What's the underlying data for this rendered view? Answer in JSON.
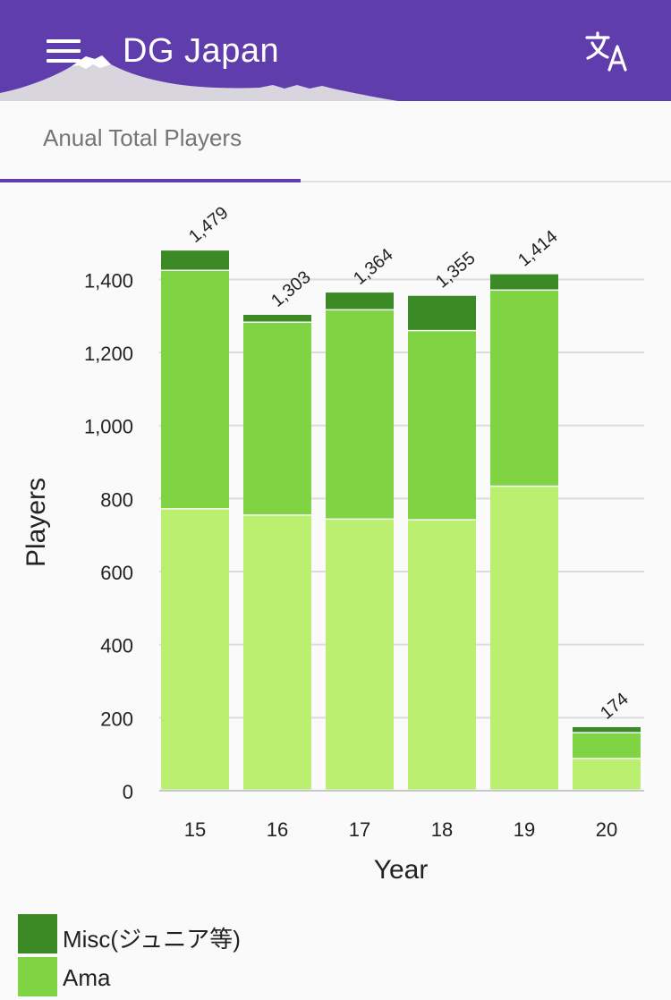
{
  "app": {
    "title": "DG Japan"
  },
  "icons": {
    "menu": "menu-icon",
    "translate": "translate-icon"
  },
  "colors": {
    "appbar": "#5f3dad",
    "misc": "#3b8a26",
    "ama": "#80d443",
    "base": "#bbef70"
  },
  "tabs": [
    {
      "label": "Anual Total Players",
      "active": true
    }
  ],
  "chart_data": {
    "type": "bar",
    "stacked": true,
    "categories": [
      "15",
      "16",
      "17",
      "18",
      "19",
      "20"
    ],
    "series": [
      {
        "values": [
          770,
          753,
          742,
          740,
          832,
          86
        ],
        "color": "#bbef70"
      },
      {
        "name": "Ama",
        "values": [
          653,
          528,
          573,
          518,
          537,
          71
        ],
        "color": "#80d443"
      },
      {
        "name": "Misc(ジュニア等)",
        "values": [
          56,
          22,
          49,
          97,
          45,
          17
        ],
        "color": "#3b8a26"
      }
    ],
    "totals": [
      1479,
      1303,
      1364,
      1355,
      1414,
      174
    ],
    "total_labels": [
      "1,479",
      "1,303",
      "1,364",
      "1,355",
      "1,414",
      "174"
    ],
    "xlabel": "Year",
    "ylabel": "Players",
    "ylim": [
      0,
      1400
    ],
    "yticks": [
      0,
      200,
      400,
      600,
      800,
      1000,
      1200,
      1400
    ],
    "ytick_labels": [
      "0",
      "200",
      "400",
      "600",
      "800",
      "1,000",
      "1,200",
      "1,400"
    ],
    "grid": true,
    "legend": "bottom-left"
  },
  "legend": [
    {
      "label": "Misc(ジュニア等)",
      "color": "#3b8a26"
    },
    {
      "label": "Ama",
      "color": "#80d443"
    }
  ]
}
